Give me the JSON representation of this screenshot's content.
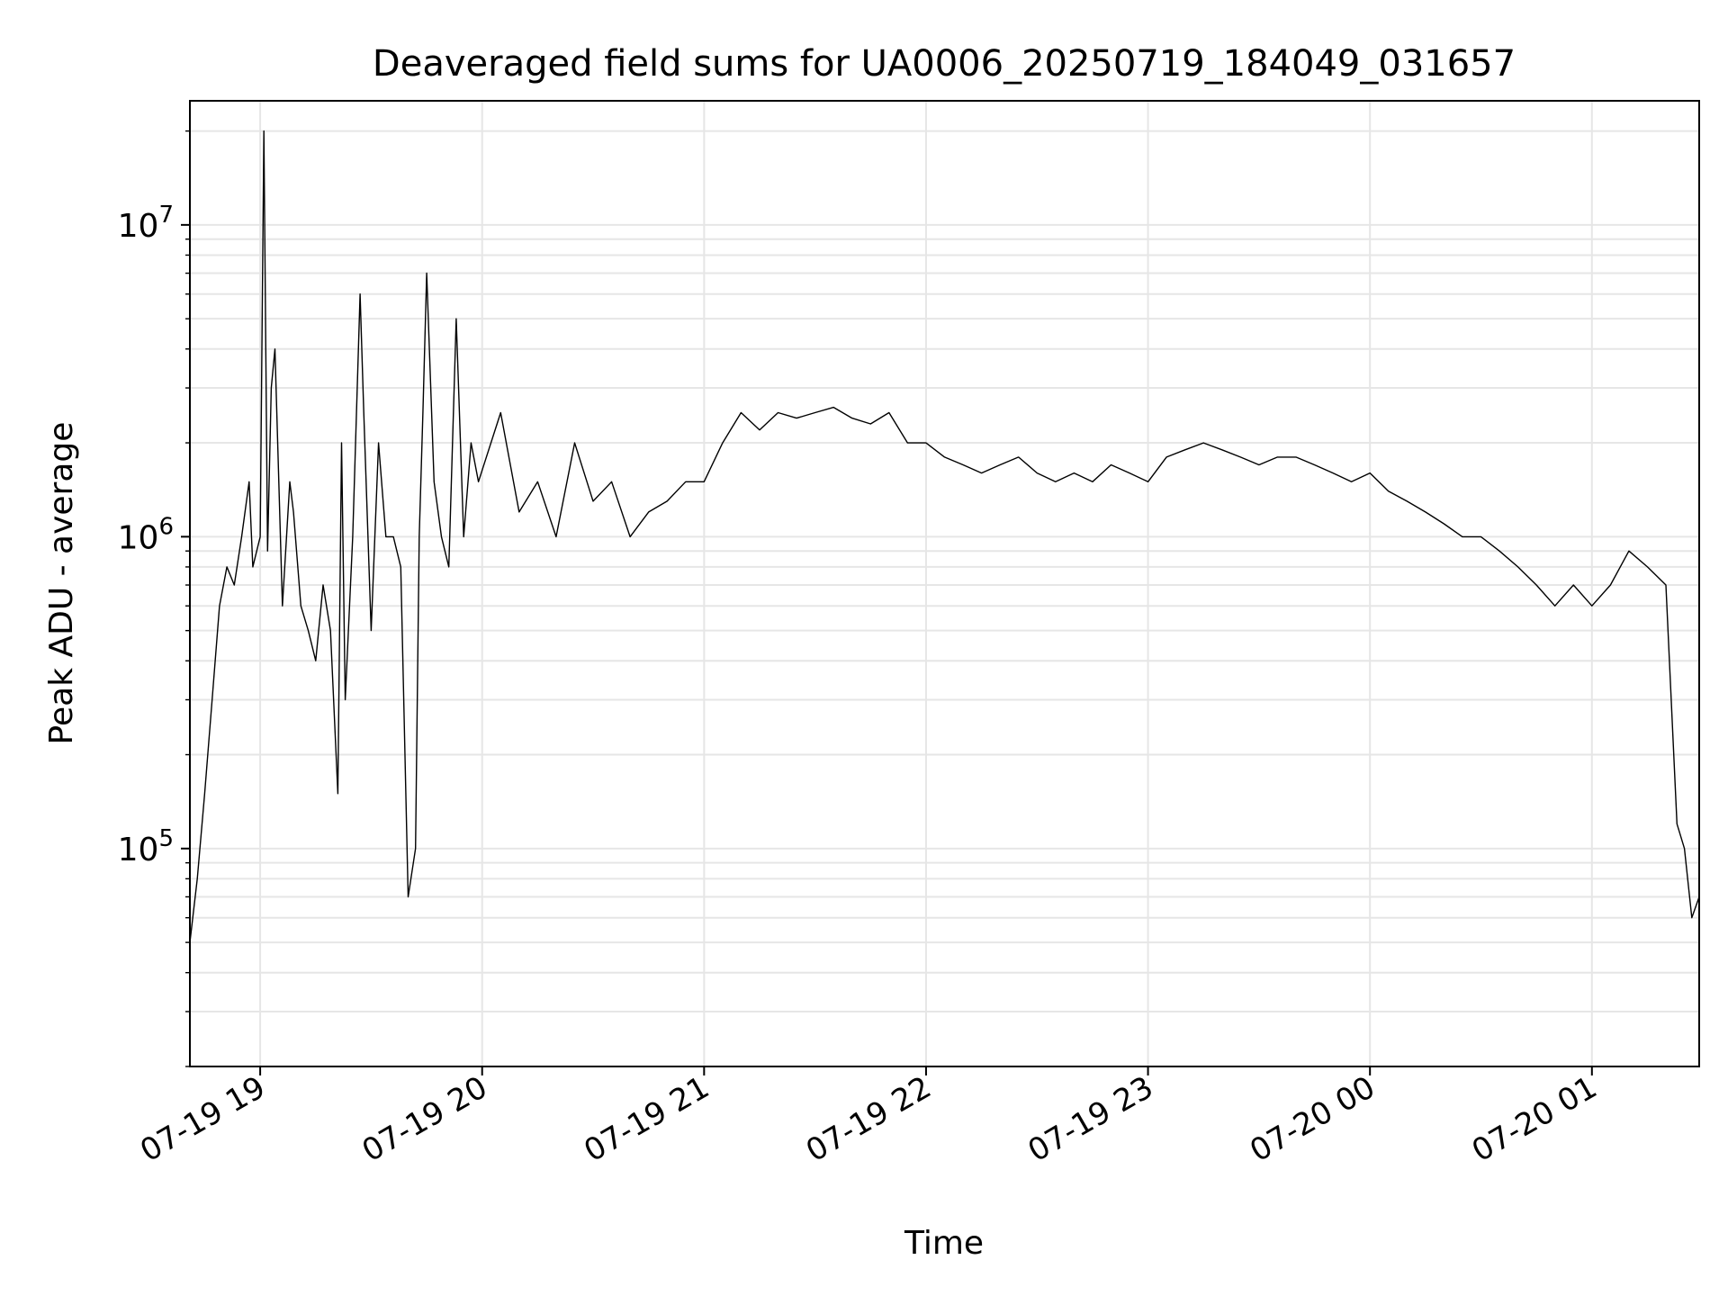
{
  "chart_data": {
    "type": "line",
    "title": "Deaveraged field sums for UA0006_20250719_184049_031657",
    "xlabel": "Time",
    "ylabel": "Peak ADU - average",
    "yscale": "log",
    "xlim": [
      "2025-07-19 18:41",
      "2025-07-20 01:29"
    ],
    "ylim": [
      20000,
      25000000
    ],
    "grid": true,
    "x_ticks": [
      {
        "label": "07-19 19",
        "value": "2025-07-19 19:00"
      },
      {
        "label": "07-19 20",
        "value": "2025-07-19 20:00"
      },
      {
        "label": "07-19 21",
        "value": "2025-07-19 21:00"
      },
      {
        "label": "07-19 22",
        "value": "2025-07-19 22:00"
      },
      {
        "label": "07-19 23",
        "value": "2025-07-19 23:00"
      },
      {
        "label": "07-20 00",
        "value": "2025-07-20 00:00"
      },
      {
        "label": "07-20 01",
        "value": "2025-07-20 01:00"
      }
    ],
    "y_ticks": [
      {
        "base": "10",
        "exp": "5",
        "value": 100000
      },
      {
        "base": "10",
        "exp": "6",
        "value": 1000000
      },
      {
        "base": "10",
        "exp": "7",
        "value": 10000000
      }
    ],
    "line_color": "#000000",
    "grid_color": "#e6e6e6",
    "series": [
      {
        "x": [
          "2025-07-19 18:41",
          "2025-07-19 18:43",
          "2025-07-19 18:45",
          "2025-07-19 18:47",
          "2025-07-19 18:49",
          "2025-07-19 18:51",
          "2025-07-19 18:53",
          "2025-07-19 18:55",
          "2025-07-19 18:57",
          "2025-07-19 18:58",
          "2025-07-19 19:00",
          "2025-07-19 19:01",
          "2025-07-19 19:02",
          "2025-07-19 19:03",
          "2025-07-19 19:04",
          "2025-07-19 19:06",
          "2025-07-19 19:08",
          "2025-07-19 19:09",
          "2025-07-19 19:11",
          "2025-07-19 19:13",
          "2025-07-19 19:15",
          "2025-07-19 19:17",
          "2025-07-19 19:19",
          "2025-07-19 19:21",
          "2025-07-19 19:22",
          "2025-07-19 19:23",
          "2025-07-19 19:25",
          "2025-07-19 19:27",
          "2025-07-19 19:28",
          "2025-07-19 19:30",
          "2025-07-19 19:32",
          "2025-07-19 19:34",
          "2025-07-19 19:36",
          "2025-07-19 19:38",
          "2025-07-19 19:40",
          "2025-07-19 19:42",
          "2025-07-19 19:43",
          "2025-07-19 19:44",
          "2025-07-19 19:45",
          "2025-07-19 19:47",
          "2025-07-19 19:49",
          "2025-07-19 19:51",
          "2025-07-19 19:53",
          "2025-07-19 19:55",
          "2025-07-19 19:57",
          "2025-07-19 19:59",
          "2025-07-19 20:05",
          "2025-07-19 20:10",
          "2025-07-19 20:15",
          "2025-07-19 20:20",
          "2025-07-19 20:25",
          "2025-07-19 20:30",
          "2025-07-19 20:35",
          "2025-07-19 20:40",
          "2025-07-19 20:45",
          "2025-07-19 20:50",
          "2025-07-19 20:55",
          "2025-07-19 21:00",
          "2025-07-19 21:05",
          "2025-07-19 21:10",
          "2025-07-19 21:15",
          "2025-07-19 21:20",
          "2025-07-19 21:25",
          "2025-07-19 21:30",
          "2025-07-19 21:35",
          "2025-07-19 21:40",
          "2025-07-19 21:45",
          "2025-07-19 21:50",
          "2025-07-19 21:55",
          "2025-07-19 22:00",
          "2025-07-19 22:05",
          "2025-07-19 22:10",
          "2025-07-19 22:15",
          "2025-07-19 22:20",
          "2025-07-19 22:25",
          "2025-07-19 22:30",
          "2025-07-19 22:35",
          "2025-07-19 22:40",
          "2025-07-19 22:45",
          "2025-07-19 22:50",
          "2025-07-19 22:55",
          "2025-07-19 23:00",
          "2025-07-19 23:05",
          "2025-07-19 23:10",
          "2025-07-19 23:15",
          "2025-07-19 23:20",
          "2025-07-19 23:25",
          "2025-07-19 23:30",
          "2025-07-19 23:35",
          "2025-07-19 23:40",
          "2025-07-19 23:45",
          "2025-07-19 23:50",
          "2025-07-19 23:55",
          "2025-07-20 00:00",
          "2025-07-20 00:05",
          "2025-07-20 00:10",
          "2025-07-20 00:15",
          "2025-07-20 00:20",
          "2025-07-20 00:25",
          "2025-07-20 00:30",
          "2025-07-20 00:35",
          "2025-07-20 00:40",
          "2025-07-20 00:45",
          "2025-07-20 00:50",
          "2025-07-20 00:55",
          "2025-07-20 01:00",
          "2025-07-20 01:05",
          "2025-07-20 01:10",
          "2025-07-20 01:15",
          "2025-07-20 01:20",
          "2025-07-20 01:23",
          "2025-07-20 01:25",
          "2025-07-20 01:27",
          "2025-07-20 01:29"
        ],
        "y": [
          50000,
          80000,
          150000,
          300000,
          600000,
          800000,
          700000,
          1000000,
          1500000,
          800000,
          1000000,
          20000000,
          900000,
          3000000,
          4000000,
          600000,
          1500000,
          1200000,
          600000,
          500000,
          400000,
          700000,
          500000,
          150000,
          2000000,
          300000,
          1000000,
          6000000,
          2500000,
          500000,
          2000000,
          1000000,
          1000000,
          800000,
          70000,
          100000,
          1000000,
          2500000,
          7000000,
          1500000,
          1000000,
          800000,
          5000000,
          1000000,
          2000000,
          1500000,
          2500000,
          1200000,
          1500000,
          1000000,
          2000000,
          1300000,
          1500000,
          1000000,
          1200000,
          1300000,
          1500000,
          1500000,
          2000000,
          2500000,
          2200000,
          2500000,
          2400000,
          2500000,
          2600000,
          2400000,
          2300000,
          2500000,
          2000000,
          2000000,
          1800000,
          1700000,
          1600000,
          1700000,
          1800000,
          1600000,
          1500000,
          1600000,
          1500000,
          1700000,
          1600000,
          1500000,
          1800000,
          1900000,
          2000000,
          1900000,
          1800000,
          1700000,
          1800000,
          1800000,
          1700000,
          1600000,
          1500000,
          1600000,
          1400000,
          1300000,
          1200000,
          1100000,
          1000000,
          1000000,
          900000,
          800000,
          700000,
          600000,
          700000,
          600000,
          700000,
          900000,
          800000,
          700000,
          120000,
          100000,
          60000,
          70000
        ]
      }
    ]
  }
}
